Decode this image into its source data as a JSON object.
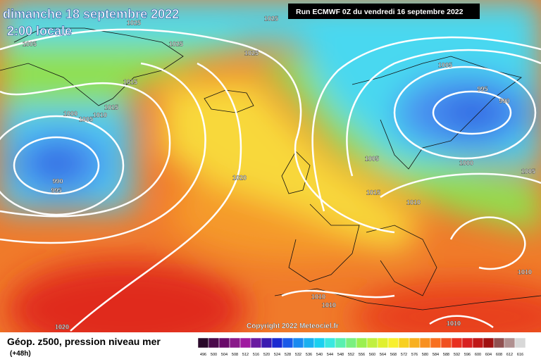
{
  "header": {
    "title": "dimanche 18 septembre 2022",
    "subtitle": "2:00 locale",
    "run": "Run ECMWF 0Z du vendredi 16 septembre 2022"
  },
  "isobar_labels": [
    1025,
    1025,
    1005,
    1025,
    1025,
    1015,
    1015,
    1010,
    1000,
    1005,
    990,
    995,
    1020,
    1005,
    995,
    990,
    1005,
    1000,
    1005,
    1015,
    1010,
    1010,
    1010,
    1010,
    1010,
    1020
  ],
  "copyright": "Copyright 2022 Meteociel.fr",
  "legend": {
    "title": "Géop. z500, pression niveau mer",
    "lead": "(+48h)",
    "labels": [
      496,
      500,
      504,
      508,
      512,
      516,
      520,
      524,
      528,
      532,
      536,
      540,
      544,
      548,
      552,
      556,
      560,
      564,
      568,
      572,
      576,
      580,
      584,
      588,
      592,
      596,
      600,
      604,
      608,
      612,
      616
    ],
    "colors": [
      "#2a0a2a",
      "#4a0a4a",
      "#6a0a6a",
      "#8a1a8a",
      "#a01aa0",
      "#6a1aa0",
      "#3a1ab0",
      "#1a2ad0",
      "#1a5ae8",
      "#1a8af0",
      "#1ab0f0",
      "#1ad0f0",
      "#3ae8e0",
      "#5af0b0",
      "#7af080",
      "#9af050",
      "#c0f040",
      "#e0f030",
      "#f8f030",
      "#f8d020",
      "#f8b020",
      "#f89020",
      "#f87020",
      "#f05020",
      "#e83020",
      "#d82020",
      "#c01818",
      "#a01010",
      "#905050",
      "#b09090",
      "#d8d8d8"
    ]
  }
}
